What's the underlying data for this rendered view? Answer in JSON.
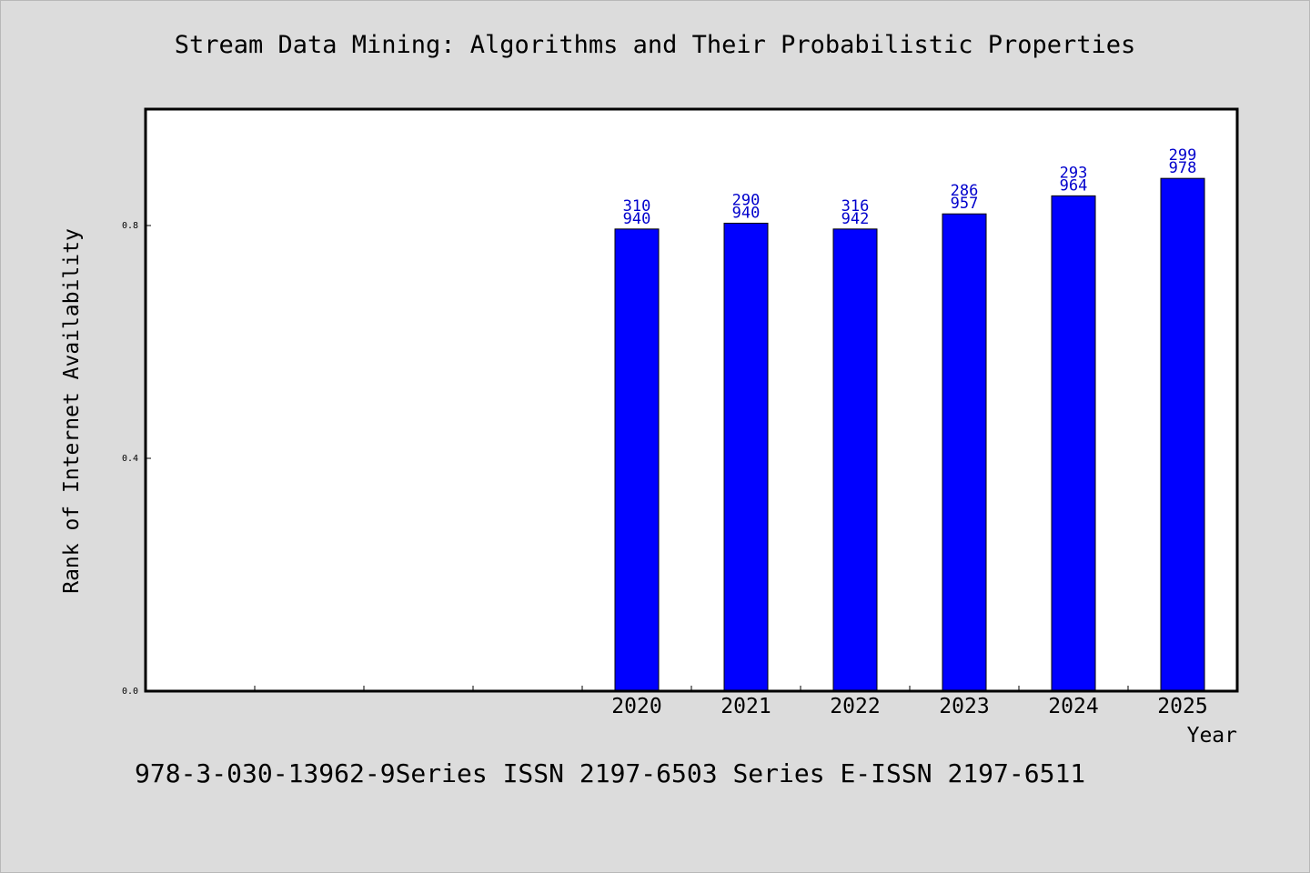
{
  "chart_data": {
    "type": "bar",
    "title": "Stream Data Mining: Algorithms and Their Probabilistic Properties",
    "xlabel": "Year",
    "ylabel": "Rank of Internet Availability",
    "categories": [
      "",
      "",
      "",
      "",
      "2020",
      "2021",
      "2022",
      "2023",
      "2024",
      "2025"
    ],
    "series": [
      {
        "color": "#0000ff",
        "values": [
          null,
          null,
          null,
          null,
          0.794,
          0.804,
          0.794,
          0.82,
          0.851,
          0.881
        ]
      }
    ],
    "data_labels": [
      null,
      null,
      null,
      null,
      [
        "310",
        "940"
      ],
      [
        "290",
        "940"
      ],
      [
        "316",
        "942"
      ],
      [
        "286",
        "957"
      ],
      [
        "293",
        "964"
      ],
      [
        "299",
        "978"
      ]
    ],
    "ylim": [
      0.0,
      1.0
    ],
    "yticks": [
      0.0,
      0.4,
      0.8
    ],
    "ytick_labels": [
      "0.0",
      "0.4",
      "0.8"
    ],
    "grid": false,
    "legend": "none",
    "colors": {
      "background": "#dcdcdc",
      "plot_area": "#ffffff",
      "bar": "#0000ff",
      "bar_edge": "#000000",
      "data_label": "#0000cc"
    }
  },
  "footer": {
    "text": "978-3-030-13962-9Series ISSN 2197-6503 Series E-ISSN 2197-6511"
  }
}
